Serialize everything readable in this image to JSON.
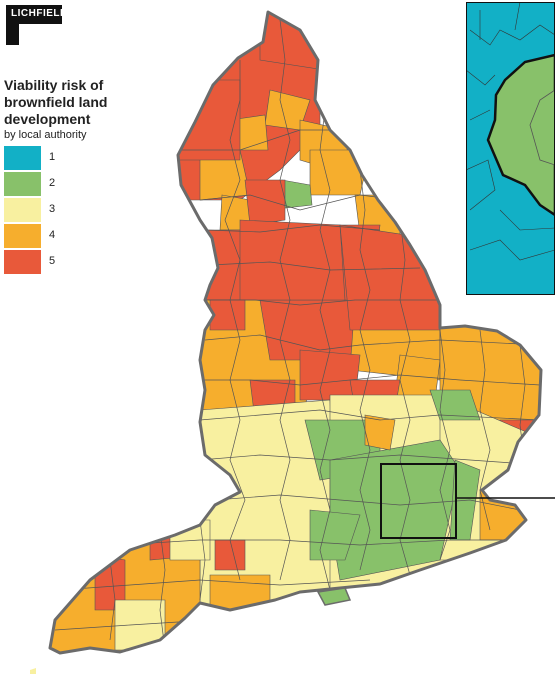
{
  "brand": {
    "name": "LICHFIELDS"
  },
  "legend": {
    "title": "Viability risk of brownfield land development",
    "subtitle": "by local authority",
    "items": [
      {
        "label": "1",
        "color": "#12b0c6"
      },
      {
        "label": "2",
        "color": "#88c16a"
      },
      {
        "label": "3",
        "color": "#f8f0a0"
      },
      {
        "label": "4",
        "color": "#f6ae2d"
      },
      {
        "label": "5",
        "color": "#e8593a"
      }
    ]
  },
  "map": {
    "country": "England",
    "inset_region": "London",
    "colors": {
      "border": "#555555",
      "outline": "#6b6b6b",
      "inset_frame": "#111111"
    }
  }
}
